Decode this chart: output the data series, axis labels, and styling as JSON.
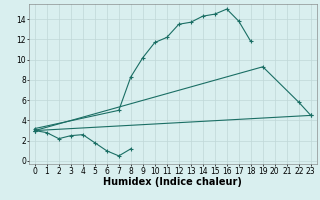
{
  "title": "",
  "xlabel": "Humidex (Indice chaleur)",
  "bg_color": "#d9efef",
  "grid_color": "#c0d8d8",
  "line_color": "#1a6e64",
  "xlim": [
    -0.5,
    23.5
  ],
  "ylim": [
    -0.3,
    15.5
  ],
  "xticks": [
    0,
    1,
    2,
    3,
    4,
    5,
    6,
    7,
    8,
    9,
    10,
    11,
    12,
    13,
    14,
    15,
    16,
    17,
    18,
    19,
    20,
    21,
    22,
    23
  ],
  "yticks": [
    0,
    2,
    4,
    6,
    8,
    10,
    12,
    14
  ],
  "line1_x": [
    0,
    7,
    8,
    9,
    10,
    11,
    12,
    13,
    14,
    15,
    16,
    17,
    18
  ],
  "line1_y": [
    3.2,
    5.0,
    8.3,
    10.2,
    11.7,
    12.2,
    13.5,
    13.7,
    14.3,
    14.5,
    15.0,
    13.8,
    11.8
  ],
  "line2_x": [
    0,
    1,
    2,
    3,
    4,
    5,
    6,
    7,
    8
  ],
  "line2_y": [
    3.0,
    2.8,
    2.2,
    2.5,
    2.6,
    1.8,
    1.0,
    0.5,
    1.2
  ],
  "line3_x": [
    0,
    23
  ],
  "line3_y": [
    3.0,
    4.5
  ],
  "line4_x": [
    0,
    19,
    22,
    23
  ],
  "line4_y": [
    3.0,
    9.3,
    5.8,
    4.5
  ],
  "line_width": 0.8,
  "marker": "+",
  "marker_size": 3,
  "font_size_label": 7,
  "font_size_tick": 5.5
}
